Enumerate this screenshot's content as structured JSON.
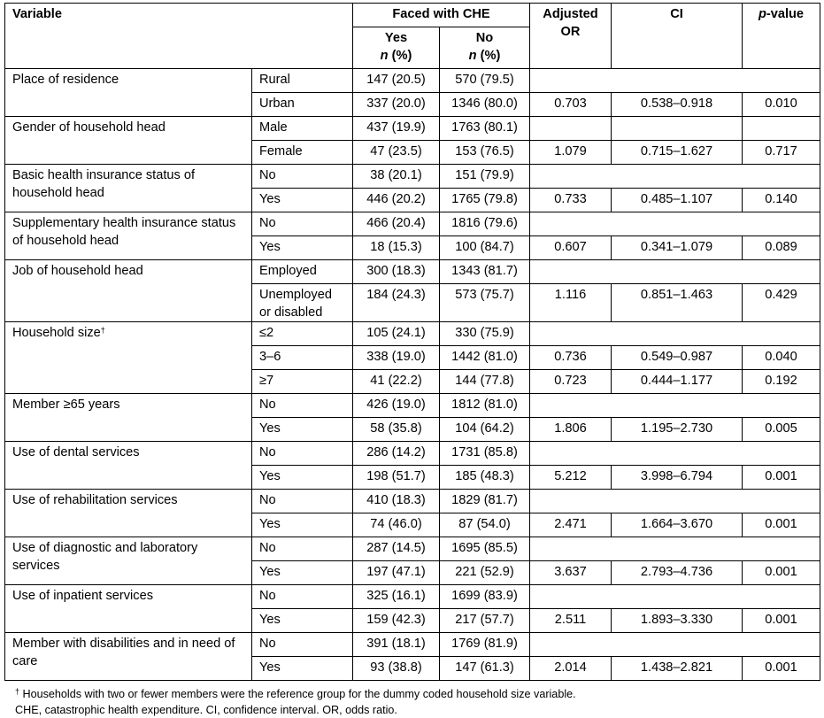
{
  "header": {
    "variable": "Variable",
    "faced": "Faced with CHE",
    "yes": "Yes",
    "no": "No",
    "n_italic": "n",
    "n_pct": " (%)",
    "or": "Adjusted OR",
    "ci": "CI",
    "p_italic": "p",
    "p_rest": "-value"
  },
  "groups": [
    {
      "variable": "Place of residence",
      "rows": [
        {
          "cat": "Rural",
          "yes": "147 (20.5)",
          "no": "570 (79.5)"
        },
        {
          "cat": "Urban",
          "yes": "337 (20.0)",
          "no": "1346 (80.0)",
          "or": "0.703",
          "ci": "0.538–0.918",
          "p": "0.010"
        }
      ]
    },
    {
      "variable": "Gender of household head",
      "split_ref": true,
      "rows": [
        {
          "cat": "Male",
          "yes": "437 (19.9)",
          "no": "1763 (80.1)"
        },
        {
          "cat": "Female",
          "yes": "47 (23.5)",
          "no": "153 (76.5)",
          "or": "1.079",
          "ci": "0.715–1.627",
          "p": "0.717"
        }
      ]
    },
    {
      "variable": "Basic health insurance status of household head",
      "rows": [
        {
          "cat": "No",
          "yes": "38 (20.1)",
          "no": "151 (79.9)"
        },
        {
          "cat": "Yes",
          "yes": "446 (20.2)",
          "no": "1765 (79.8)",
          "or": "0.733",
          "ci": "0.485–1.107",
          "p": "0.140"
        }
      ]
    },
    {
      "variable": "Supplementary health insurance status of household head",
      "rows": [
        {
          "cat": "No",
          "yes": "466 (20.4)",
          "no": "1816 (79.6)"
        },
        {
          "cat": "Yes",
          "yes": "18 (15.3)",
          "no": "100 (84.7)",
          "or": "0.607",
          "ci": "0.341–1.079",
          "p": "0.089"
        }
      ]
    },
    {
      "variable": "Job of household head",
      "rows": [
        {
          "cat": "Employed",
          "yes": "300 (18.3)",
          "no": "1343 (81.7)"
        },
        {
          "cat": "Unemployed or disabled",
          "yes": "184 (24.3)",
          "no": "573 (75.7)",
          "or": "1.116",
          "ci": "0.851–1.463",
          "p": "0.429"
        }
      ]
    },
    {
      "variable": "Household size",
      "dagger": "†",
      "rows": [
        {
          "cat": "≤2",
          "yes": "105 (24.1)",
          "no": "330 (75.9)"
        },
        {
          "cat": "3–6",
          "yes": "338 (19.0)",
          "no": "1442 (81.0)",
          "or": "0.736",
          "ci": "0.549–0.987",
          "p": "0.040"
        },
        {
          "cat": "≥7",
          "yes": "41 (22.2)",
          "no": "144 (77.8)",
          "or": "0.723",
          "ci": "0.444–1.177",
          "p": "0.192"
        }
      ]
    },
    {
      "variable": "Member ≥65 years",
      "rows": [
        {
          "cat": "No",
          "yes": "426 (19.0)",
          "no": "1812 (81.0)"
        },
        {
          "cat": "Yes",
          "yes": "58 (35.8)",
          "no": "104 (64.2)",
          "or": "1.806",
          "ci": "1.195–2.730",
          "p": "0.005"
        }
      ]
    },
    {
      "variable": "Use of dental services",
      "rows": [
        {
          "cat": "No",
          "yes": "286 (14.2)",
          "no": "1731 (85.8)"
        },
        {
          "cat": "Yes",
          "yes": "198 (51.7)",
          "no": "185 (48.3)",
          "or": "5.212",
          "ci": "3.998–6.794",
          "p": "0.001"
        }
      ]
    },
    {
      "variable": "Use of rehabilitation services",
      "rows": [
        {
          "cat": "No",
          "yes": "410 (18.3)",
          "no": "1829 (81.7)"
        },
        {
          "cat": "Yes",
          "yes": "74 (46.0)",
          "no": "87 (54.0)",
          "or": "2.471",
          "ci": "1.664–3.670",
          "p": "0.001"
        }
      ]
    },
    {
      "variable": "Use of diagnostic and laboratory services",
      "rows": [
        {
          "cat": "No",
          "yes": "287 (14.5)",
          "no": "1695 (85.5)"
        },
        {
          "cat": "Yes",
          "yes": "197 (47.1)",
          "no": "221 (52.9)",
          "or": "3.637",
          "ci": "2.793–4.736",
          "p": "0.001"
        }
      ]
    },
    {
      "variable": "Use of inpatient services",
      "rows": [
        {
          "cat": "No",
          "yes": "325 (16.1)",
          "no": "1699 (83.9)"
        },
        {
          "cat": "Yes",
          "yes": "159 (42.3)",
          "no": "217 (57.7)",
          "or": "2.511",
          "ci": "1.893–3.330",
          "p": "0.001"
        }
      ]
    },
    {
      "variable": "Member with disabilities and in need of care",
      "rows": [
        {
          "cat": "No",
          "yes": "391 (18.1)",
          "no": "1769 (81.9)"
        },
        {
          "cat": "Yes",
          "yes": "93 (38.8)",
          "no": "147 (61.3)",
          "or": "2.014",
          "ci": "1.438–2.821",
          "p": "0.001"
        }
      ]
    }
  ],
  "footnotes": {
    "dagger": "†",
    "line1": " Households with two or fewer members were the reference group for the dummy coded household size variable.",
    "line2": "CHE, catastrophic health expenditure. CI, confidence interval. OR, odds ratio."
  }
}
